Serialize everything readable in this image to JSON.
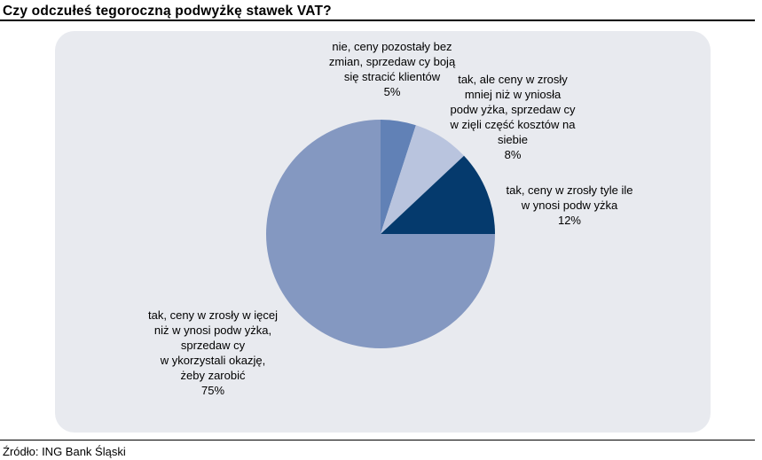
{
  "header": {
    "title": "Czy odczułeś tegoroczną podwyżkę stawek VAT?"
  },
  "footer": {
    "source": "Źródło: ING Bank Śląski"
  },
  "panel": {
    "background": "#e8eaef"
  },
  "chart_data": {
    "type": "pie",
    "title": "Czy odczułeś tegoroczną podwyżkę stawek VAT?",
    "source": "Źródło: ING Bank Śląski",
    "start_angle_deg": 0,
    "direction": "clockwise",
    "legend_position": "none",
    "labels_position": "outside",
    "background": "#e8eaef",
    "slices": [
      {
        "id": "no-change",
        "label": "nie, ceny pozostały bez zmian, sprzedaw cy boją się stracić klientów",
        "label_text": "nie, ceny pozostały bez\nzmian, sprzedaw cy boją\nsię stracić klientów\n5%",
        "value_pct": 5,
        "color": "#6181b6"
      },
      {
        "id": "rose-less-than-hike",
        "label": "tak, ale ceny w zrosły mniej niż w yniosła podw yżka, sprzedaw cy w zięli część kosztów na siebie",
        "label_text": "tak, ale ceny w zrosły\nmniej niż w yniosła\npodw yżka, sprzedaw cy\nw zięli część kosztów na\nsiebie\n8%",
        "value_pct": 8,
        "color": "#b9c4de"
      },
      {
        "id": "rose-equal-to-hike",
        "label": "tak, ceny w zrosły tyle ile w ynosi podw yżka",
        "label_text": "tak, ceny w zrosły tyle ile\nw ynosi podw yżka\n12%",
        "value_pct": 12,
        "color": "#053a6d"
      },
      {
        "id": "rose-more-than-hike",
        "label": "tak, ceny w zrosły w ięcej niż w ynosi podw yżka, sprzedaw cy w ykorzystali okazję, żeby zarobić",
        "label_text": "tak, ceny w zrosły w ięcej\nniż w ynosi podw yżka,\nsprzedaw cy\nw ykorzystali okazję,\nżeby zarobić\n75%",
        "value_pct": 75,
        "color": "#8498c1"
      }
    ]
  }
}
